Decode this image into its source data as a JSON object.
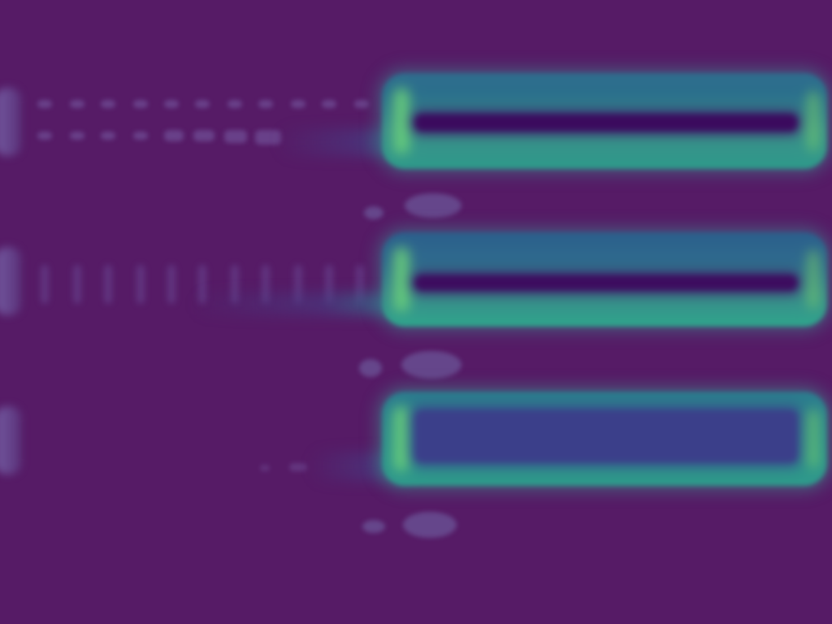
{
  "colors": {
    "background": "#561b66",
    "bar_teal": "#2f8a8c",
    "bar_inner_dark": "#3b0a5e",
    "bar_inner_blue": "#3b3f8a",
    "glow_green": "#6cd37a"
  },
  "rows": [
    {
      "id": "row-1",
      "bar_style": "dark-stripe"
    },
    {
      "id": "row-2",
      "bar_style": "dark-stripe"
    },
    {
      "id": "row-3",
      "bar_style": "blue-fill"
    }
  ]
}
